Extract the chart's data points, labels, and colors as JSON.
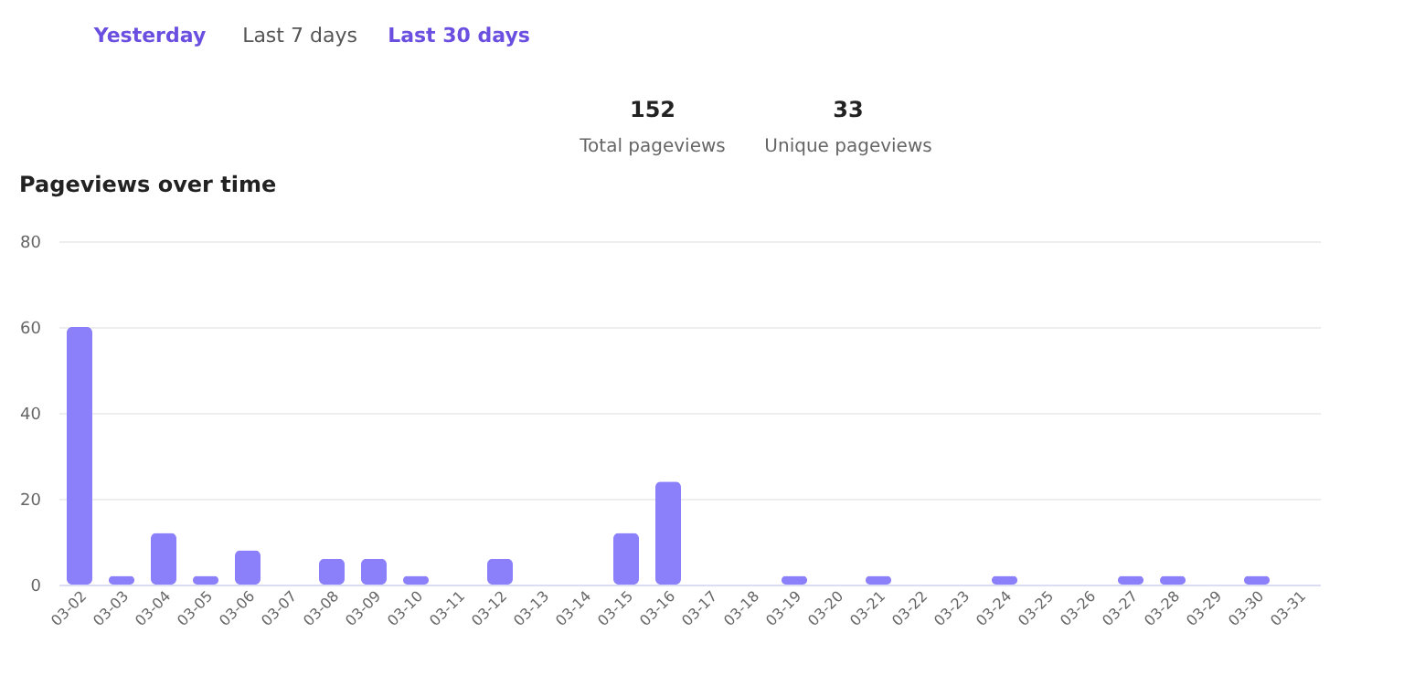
{
  "chart_data": {
    "type": "bar",
    "title": "Pageviews over time",
    "annotations": [
      "Yesterday",
      "Last 7 days",
      "Last 30 days",
      "152",
      "Total pageviews",
      "33",
      "Unique pageviews"
    ],
    "categories": [
      "03-02",
      "03-03",
      "03-04",
      "03-05",
      "03-06",
      "03-07",
      "03-08",
      "03-09",
      "03-10",
      "03-11",
      "03-12",
      "03-13",
      "03-14",
      "03-15",
      "03-16",
      "03-17",
      "03-18",
      "03-19",
      "03-20",
      "03-21",
      "03-22",
      "03-23",
      "03-24",
      "03-25",
      "03-26",
      "03-27",
      "03-28",
      "03-29",
      "03-30",
      "03-31"
    ],
    "values": [
      60,
      2,
      12,
      2,
      8,
      0,
      6,
      6,
      2,
      0,
      6,
      0,
      0,
      12,
      24,
      0,
      0,
      2,
      0,
      2,
      0,
      0,
      2,
      0,
      0,
      2,
      2,
      0,
      2,
      0
    ],
    "color": "#8b80f9",
    "ylim": [
      0,
      80
    ],
    "yticks": [
      0,
      20,
      40,
      60,
      80
    ],
    "grid": "y"
  }
}
